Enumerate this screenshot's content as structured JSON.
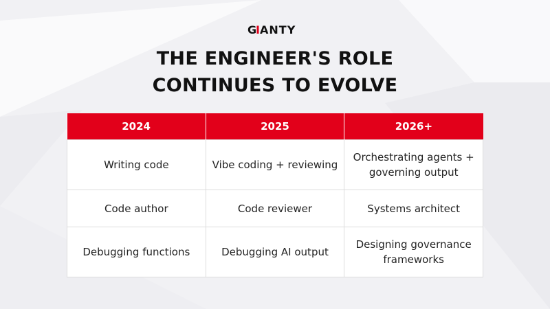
{
  "brand": {
    "logo_text": "GIANTY",
    "accent_color": "#e2001a"
  },
  "title": {
    "line1": "THE ENGINEER'S ROLE",
    "line2": "CONTINUES TO EVOLVE"
  },
  "table": {
    "headers": [
      "2024",
      "2025",
      "2026+"
    ],
    "rows": [
      [
        "Writing code",
        "Vibe coding + reviewing",
        "Orchestrating agents +\ngoverning output"
      ],
      [
        "Code author",
        "Code reviewer",
        "Systems architect"
      ],
      [
        "Debugging functions",
        "Debugging AI output",
        "Designing governance\nframeworks"
      ]
    ]
  }
}
